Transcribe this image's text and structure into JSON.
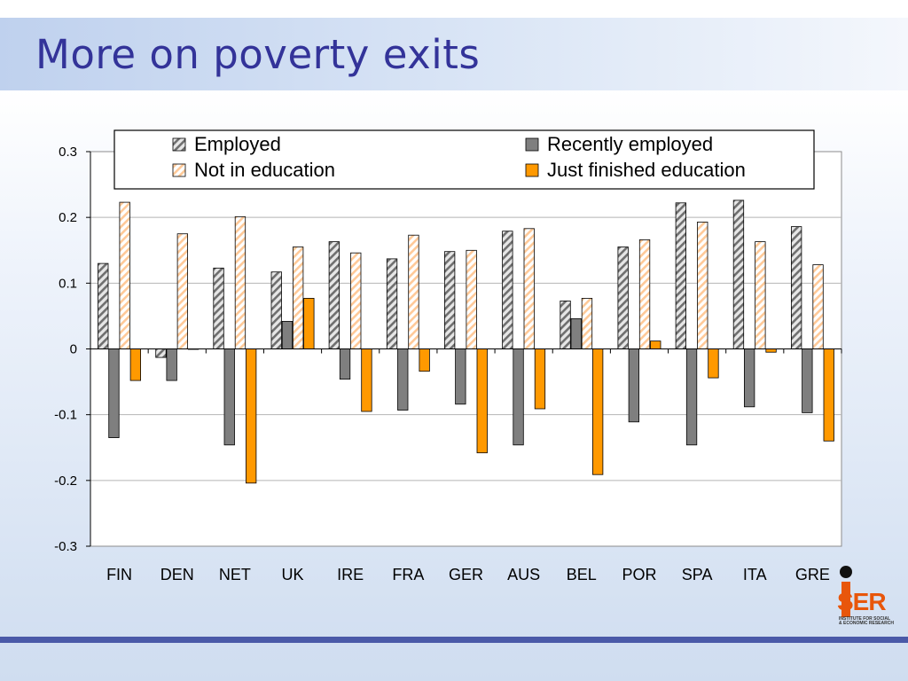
{
  "slide": {
    "title": "More on poverty exits",
    "logo_text": "SER",
    "logo_subtext": "INSTITUTE FOR SOCIAL\n& ECONOMIC RESEARCH"
  },
  "chart_data": {
    "type": "bar",
    "categories": [
      "FIN",
      "DEN",
      "NET",
      "UK",
      "IRE",
      "FRA",
      "GER",
      "AUS",
      "BEL",
      "POR",
      "SPA",
      "ITA",
      "GRE"
    ],
    "series": [
      {
        "name": "Employed",
        "color": "#d0d0d0",
        "pattern": "hatch-gray",
        "values": [
          0.13,
          -0.013,
          0.123,
          0.117,
          0.163,
          0.137,
          0.148,
          0.179,
          0.073,
          0.155,
          0.222,
          0.226,
          0.186
        ]
      },
      {
        "name": "Recently employed",
        "color": "#7f7f7f",
        "pattern": "solid",
        "values": [
          -0.135,
          -0.048,
          -0.146,
          0.042,
          -0.046,
          -0.093,
          -0.084,
          -0.146,
          0.046,
          -0.111,
          -0.146,
          -0.088,
          -0.097
        ]
      },
      {
        "name": "Not in education",
        "color": "#ffd9b3",
        "pattern": "hatch-peach",
        "values": [
          0.223,
          0.175,
          0.201,
          0.155,
          0.146,
          0.173,
          0.15,
          0.183,
          0.077,
          0.166,
          0.193,
          0.163,
          0.128
        ]
      },
      {
        "name": "Just finished education",
        "color": "#ff9900",
        "pattern": "solid",
        "values": [
          -0.048,
          0,
          -0.204,
          0.077,
          -0.095,
          -0.034,
          -0.158,
          -0.091,
          -0.191,
          0.012,
          -0.044,
          -0.005,
          -0.14
        ]
      }
    ],
    "yticks": [
      "0.3",
      "0.2",
      "0.1",
      "0",
      "-0.1",
      "-0.2",
      "-0.3"
    ],
    "ylim": [
      -0.3,
      0.3
    ],
    "grid": true,
    "legend": "top"
  }
}
